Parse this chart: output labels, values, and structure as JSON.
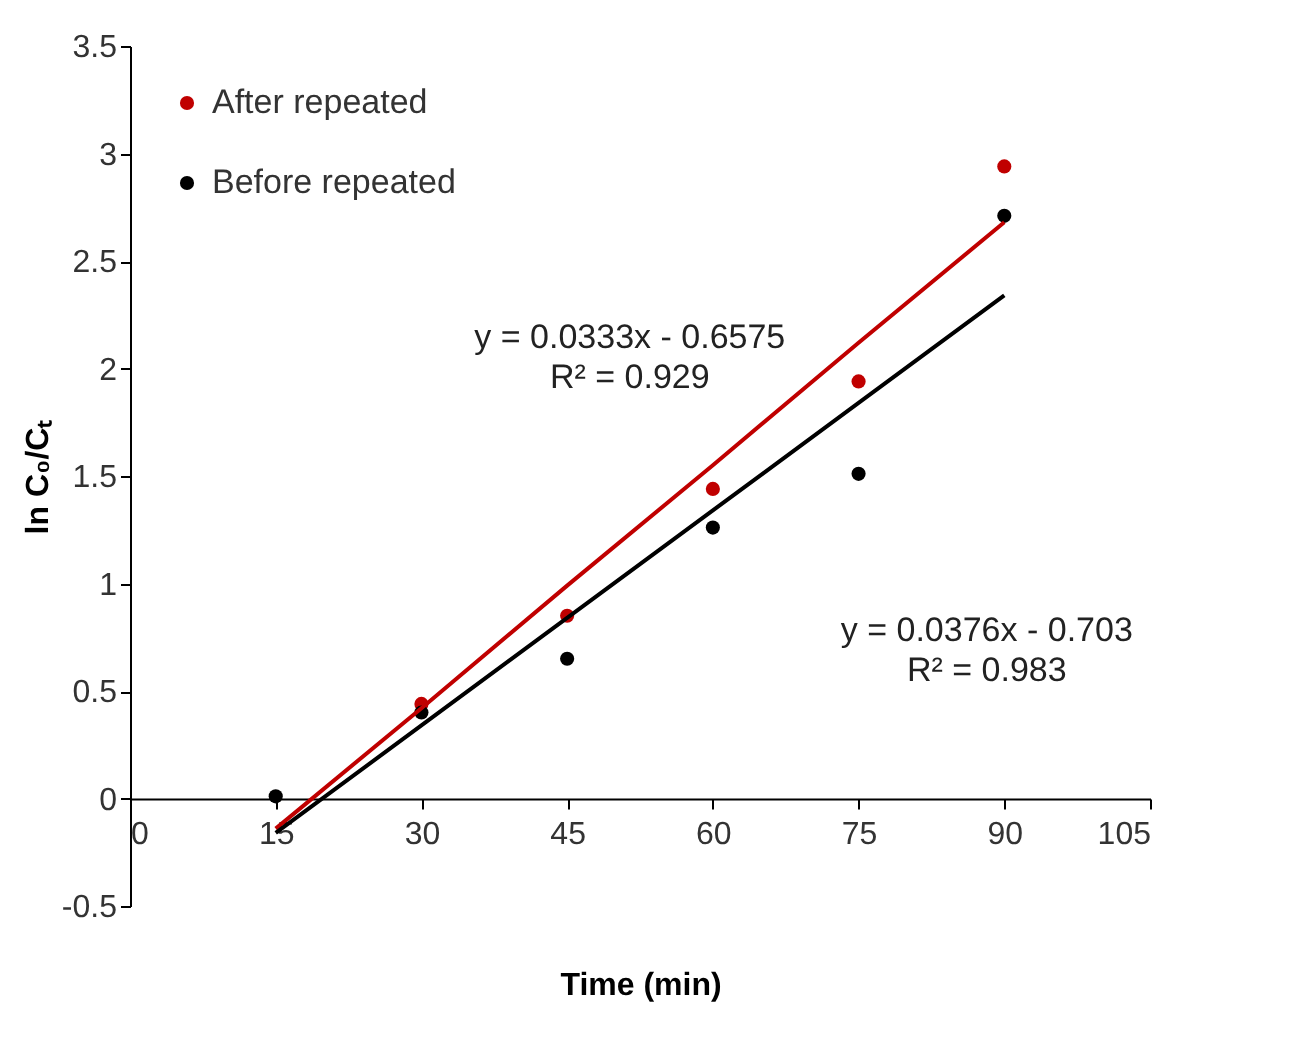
{
  "chart_data": {
    "type": "scatter",
    "xlabel": "Time (min)",
    "ylabel": "ln C₀/Cₜ",
    "x": [
      15,
      30,
      45,
      60,
      75,
      90
    ],
    "series": [
      {
        "name": "After repeated",
        "color": "#c00000",
        "marker": "circle",
        "values": [
          null,
          0.44,
          0.85,
          1.44,
          1.94,
          2.94
        ]
      },
      {
        "name": "Before repeated",
        "color": "#000000",
        "marker": "circle",
        "values": [
          0.01,
          0.4,
          0.65,
          1.26,
          1.51,
          2.71
        ]
      },
      {
        "type": "line",
        "color": "#c00000",
        "marker": "none",
        "values": [
          -0.14,
          0.42,
          0.99,
          1.55,
          2.12,
          2.68
        ]
      },
      {
        "type": "line",
        "color": "#000000",
        "marker": "none",
        "values": [
          -0.16,
          0.34,
          0.84,
          1.34,
          1.84,
          2.34
        ]
      }
    ],
    "annotations": [
      "y = 0.0333x - 0.6575\nR² = 0.929",
      "y = 0.0376x - 0.703\nR² = 0.983"
    ],
    "xlim": [
      0,
      105
    ],
    "xticks": [
      0,
      15,
      30,
      45,
      60,
      75,
      90,
      105
    ],
    "ylim": [
      -0.5,
      3.5
    ],
    "yticks": [
      -0.5,
      0,
      0.5,
      1,
      1.5,
      2,
      2.5,
      3,
      3.5
    ],
    "legend": "top left",
    "grid": false,
    "line_style": "solid"
  }
}
